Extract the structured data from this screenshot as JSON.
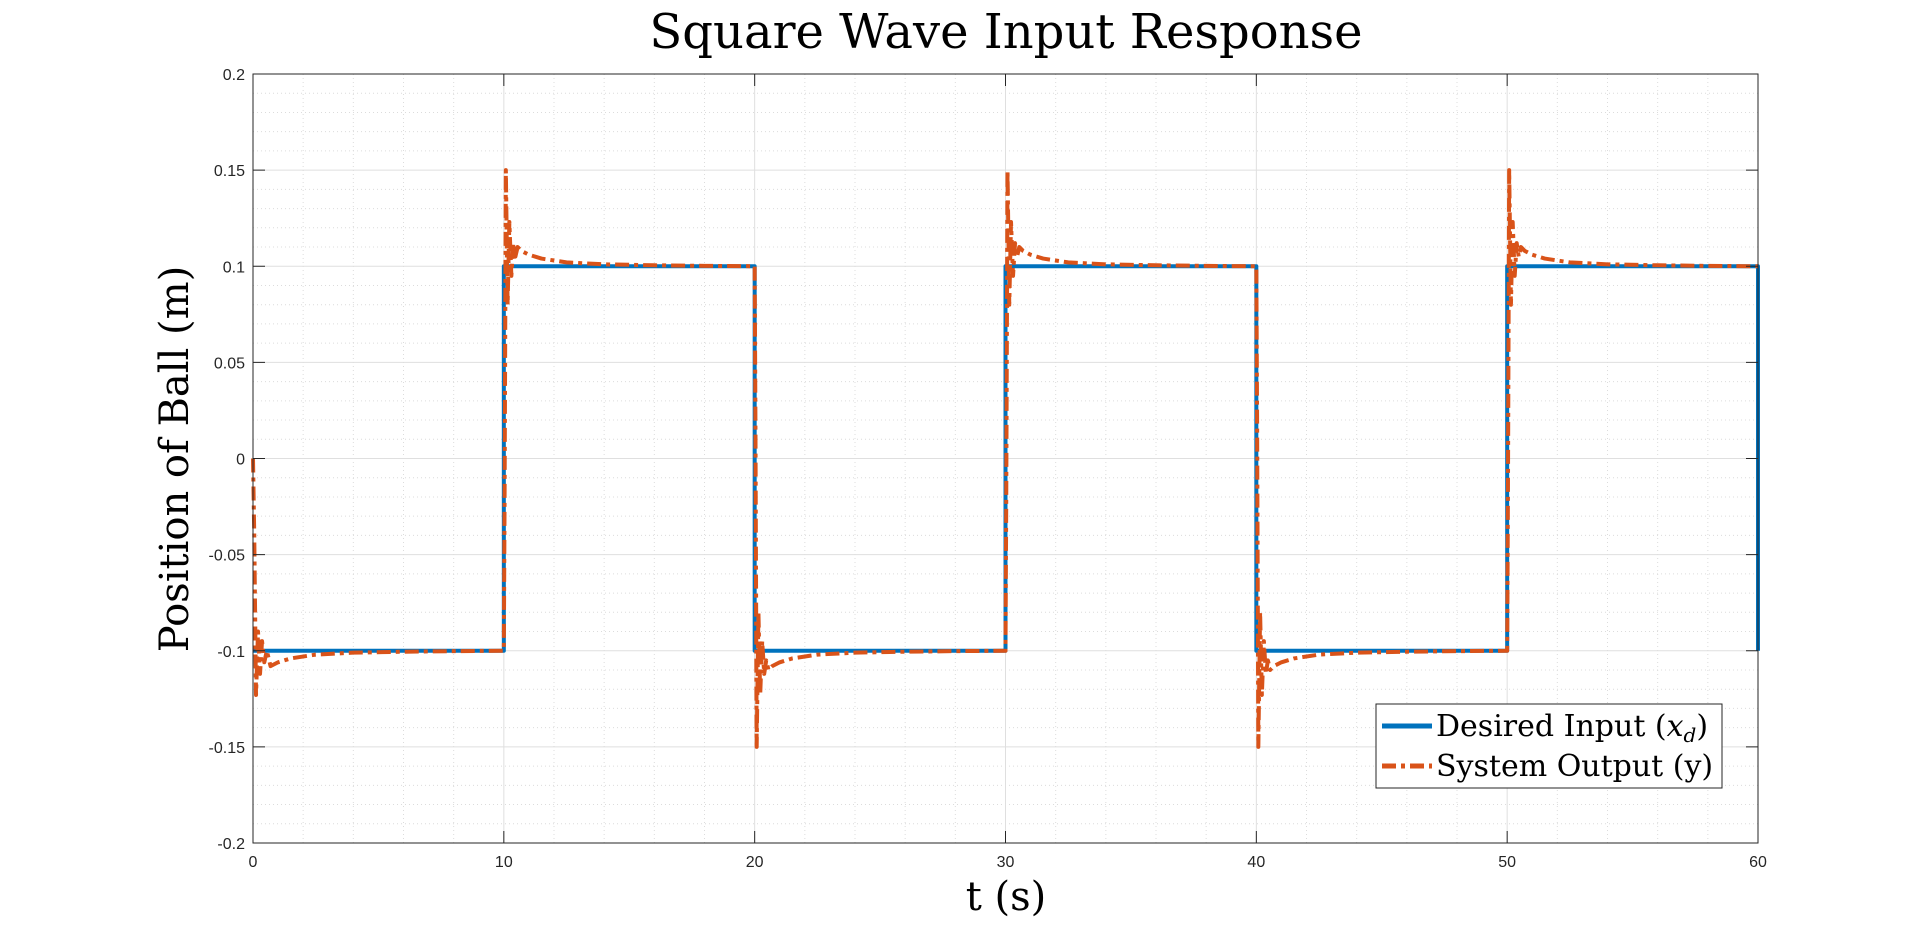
{
  "chart_data": {
    "type": "line",
    "title": "Square Wave Input Response",
    "xlabel": "t (s)",
    "ylabel": "Position of Ball (m)",
    "xlim": [
      0,
      60
    ],
    "ylim": [
      -0.2,
      0.2
    ],
    "xticks": [
      0,
      10,
      20,
      30,
      40,
      50,
      60
    ],
    "yticks": [
      -0.2,
      -0.15,
      -0.1,
      -0.05,
      0,
      0.05,
      0.1,
      0.15,
      0.2
    ],
    "grid": true,
    "minor_grid": true,
    "legend": "bottom-right",
    "series": [
      {
        "name": "Desired Input (x_d)",
        "legend_main": "Desired Input (",
        "legend_var": "x",
        "legend_sub": "d",
        "legend_close": ")",
        "color": "#0072BD",
        "style": "solid",
        "x": [
          0,
          10,
          10,
          20,
          20,
          30,
          30,
          40,
          40,
          50,
          50,
          60,
          60
        ],
        "y": [
          -0.1,
          -0.1,
          0.1,
          0.1,
          -0.1,
          -0.1,
          0.1,
          0.1,
          -0.1,
          -0.1,
          0.1,
          0.1,
          -0.1
        ]
      },
      {
        "name": "System Output (y)",
        "legend_main": "System Output (y)",
        "color": "#D95319",
        "style": "dash-dot",
        "x": [
          0,
          0.05,
          0.12,
          0.2,
          0.28,
          0.36,
          0.45,
          0.55,
          0.7,
          1.0,
          1.5,
          2.5,
          4,
          6,
          8,
          10,
          10.03,
          10.08,
          10.15,
          10.22,
          10.3,
          10.38,
          10.46,
          10.55,
          10.7,
          11.0,
          11.5,
          12.5,
          14,
          16,
          18,
          20,
          20.03,
          20.08,
          20.15,
          20.22,
          20.3,
          20.38,
          20.46,
          20.55,
          20.7,
          21.0,
          21.5,
          22.5,
          24,
          26,
          28,
          30,
          30.03,
          30.08,
          30.15,
          30.22,
          30.3,
          30.38,
          30.46,
          30.55,
          30.7,
          31.0,
          31.5,
          32.5,
          34,
          36,
          38,
          40,
          40.03,
          40.08,
          40.15,
          40.22,
          40.3,
          40.38,
          40.46,
          40.55,
          40.7,
          41.0,
          41.5,
          42.5,
          44,
          46,
          48,
          50,
          50.03,
          50.08,
          50.15,
          50.22,
          50.3,
          50.38,
          50.46,
          50.55,
          50.7,
          51.0,
          51.5,
          52.5,
          54,
          56,
          58,
          60
        ],
        "y": [
          0,
          -0.04,
          -0.123,
          -0.09,
          -0.112,
          -0.095,
          -0.106,
          -0.1,
          -0.108,
          -0.106,
          -0.104,
          -0.102,
          -0.101,
          -0.1005,
          -0.1002,
          -0.1,
          -0.02,
          0.15,
          0.08,
          0.123,
          0.095,
          0.112,
          0.105,
          0.11,
          0.108,
          0.106,
          0.104,
          0.102,
          0.101,
          0.1005,
          0.1002,
          0.1,
          0.02,
          -0.15,
          -0.08,
          -0.123,
          -0.095,
          -0.112,
          -0.105,
          -0.11,
          -0.108,
          -0.106,
          -0.104,
          -0.102,
          -0.101,
          -0.1005,
          -0.1002,
          -0.1,
          -0.02,
          0.15,
          0.08,
          0.123,
          0.095,
          0.112,
          0.105,
          0.11,
          0.108,
          0.106,
          0.104,
          0.102,
          0.101,
          0.1005,
          0.1002,
          0.1,
          0.02,
          -0.15,
          -0.08,
          -0.123,
          -0.095,
          -0.112,
          -0.105,
          -0.11,
          -0.108,
          -0.106,
          -0.104,
          -0.102,
          -0.101,
          -0.1005,
          -0.1002,
          -0.1,
          -0.02,
          0.15,
          0.08,
          0.123,
          0.095,
          0.112,
          0.105,
          0.11,
          0.108,
          0.106,
          0.104,
          0.102,
          0.101,
          0.1005,
          0.1002,
          0.1
        ]
      }
    ]
  }
}
